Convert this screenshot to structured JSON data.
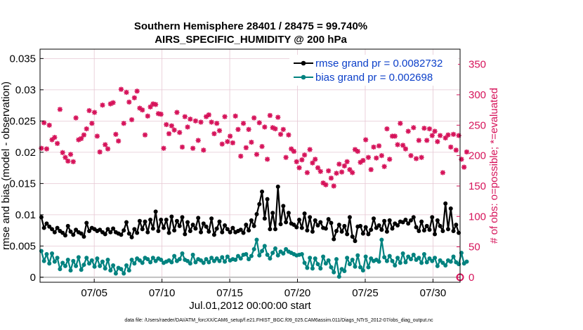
{
  "chart_data": {
    "type": "line",
    "title_line1": "Southern Hemisphere 28401 / 28475 = 99.740%",
    "title_line2": "AIRS_SPECIFIC_HUMIDITY @ 200 hPa",
    "xlabel": "Jul.01,2012 00:00:00 start",
    "ylabel_left": "rmse and bias (model - observation)",
    "ylabel_right": "# of obs: o=possible; *=evaluated",
    "footer": "data file: /Users/raeder/DAI/ATM_forcXX/CAM6_setup/f.e21.FHIST_BGC.f09_025.CAM6assim.011/Diags_NTrS_2012-07/obs_diag_output.nc",
    "x_range_days": [
      1,
      32
    ],
    "xticks": [
      {
        "day": 5,
        "label": "07/05"
      },
      {
        "day": 10,
        "label": "07/10"
      },
      {
        "day": 15,
        "label": "07/15"
      },
      {
        "day": 20,
        "label": "07/20"
      },
      {
        "day": 25,
        "label": "07/25"
      },
      {
        "day": 30,
        "label": "07/30"
      }
    ],
    "ylim_left": [
      -0.0008,
      0.0365
    ],
    "yticks_left": [
      "0",
      "0.005",
      "0.01",
      "0.015",
      "0.02",
      "0.025",
      "0.03",
      "0.035"
    ],
    "yticks_left_values": [
      0,
      0.005,
      0.01,
      0.015,
      0.02,
      0.025,
      0.03,
      0.035
    ],
    "ylim_right": [
      -8.2,
      375
    ],
    "yticks_right": [
      "0",
      "50",
      "100",
      "150",
      "200",
      "250",
      "300",
      "350"
    ],
    "yticks_right_values": [
      0,
      50,
      100,
      150,
      200,
      250,
      300,
      350
    ],
    "colors": {
      "rmse": "#000000",
      "bias": "#00827f",
      "obs": "#d6135a",
      "possible_line": "#c0c0c0",
      "grid": "#e6c7d3",
      "legend_text": "#0b3fc9"
    },
    "series": [
      {
        "name": "rmse",
        "legend": "rmse grand pr = 0.0082732",
        "values": [
          0.0096,
          0.0079,
          0.0086,
          0.0081,
          0.0077,
          0.0072,
          0.0079,
          0.0074,
          0.0071,
          0.0067,
          0.0082,
          0.0073,
          0.0068,
          0.0076,
          0.0072,
          0.007,
          0.0065,
          0.0087,
          0.0074,
          0.0079,
          0.0077,
          0.0074,
          0.0076,
          0.0072,
          0.0069,
          0.0077,
          0.0072,
          0.0078,
          0.0072,
          0.007,
          0.0068,
          0.0075,
          0.0088,
          0.007,
          0.0064,
          0.0077,
          0.0071,
          0.009,
          0.0077,
          0.0089,
          0.0072,
          0.0092,
          0.0078,
          0.0105,
          0.0074,
          0.0092,
          0.0079,
          0.0092,
          0.0071,
          0.0097,
          0.0075,
          0.009,
          0.0082,
          0.0096,
          0.0069,
          0.0088,
          0.0074,
          0.0084,
          0.0078,
          0.0095,
          0.0072,
          0.0086,
          0.0081,
          0.0073,
          0.0094,
          0.0068,
          0.0078,
          0.0089,
          0.0072,
          0.0083,
          0.0077,
          0.0072,
          0.0079,
          0.0072,
          0.0074,
          0.0076,
          0.0071,
          0.0084,
          0.0075,
          0.0091,
          0.0082,
          0.0101,
          0.0117,
          0.0137,
          0.0094,
          0.0125,
          0.0077,
          0.0103,
          0.0077,
          0.0145,
          0.0085,
          0.0114,
          0.0088,
          0.0103,
          0.0086,
          0.0084,
          0.008,
          0.0092,
          0.0079,
          0.0102,
          0.0075,
          0.0096,
          0.0073,
          0.0091,
          0.0083,
          0.0088,
          0.0079,
          0.0078,
          0.0093,
          0.0087,
          0.0061,
          0.0074,
          0.0084,
          0.0073,
          0.0082,
          0.0069,
          0.0096,
          0.0065,
          0.0058,
          0.0081,
          0.0082,
          0.007,
          0.008,
          0.0069,
          0.0076,
          0.0094,
          0.0079,
          0.0083,
          0.0076,
          0.009,
          0.0073,
          0.0091,
          0.0078,
          0.0086,
          0.0083,
          0.0089,
          0.0088,
          0.0092,
          0.0086,
          0.0091,
          0.0096,
          0.008,
          0.0074,
          0.0089,
          0.0075,
          0.0082,
          0.0076,
          0.0096,
          0.0069,
          0.0091,
          0.0082,
          0.0074,
          0.0118,
          0.0077,
          0.011,
          0.0074,
          0.0084,
          0.0071
        ]
      },
      {
        "name": "bias",
        "legend": "bias grand pr = 0.002698",
        "values": [
          0.0042,
          0.0026,
          0.0037,
          0.0022,
          0.0038,
          0.0025,
          0.0031,
          0.0013,
          0.0023,
          0.0018,
          0.0028,
          0.0011,
          0.0026,
          0.0018,
          0.0032,
          0.0012,
          0.002,
          0.0031,
          0.0022,
          0.0027,
          0.0017,
          0.003,
          0.0018,
          0.0025,
          0.0014,
          0.0028,
          0.0011,
          0.0019,
          0.0006,
          0.0015,
          0.0013,
          0.0006,
          0.0019,
          0.0011,
          0.0028,
          0.0022,
          0.003,
          0.0027,
          0.0023,
          0.0031,
          0.0029,
          0.0024,
          0.0031,
          0.0026,
          0.003,
          0.0028,
          0.0023,
          0.0025,
          0.0027,
          0.0024,
          0.0034,
          0.0026,
          0.0029,
          0.0038,
          0.0028,
          0.0026,
          0.0022,
          0.0036,
          0.0024,
          0.0029,
          0.0027,
          0.0023,
          0.0029,
          0.0024,
          0.0031,
          0.0026,
          0.003,
          0.0026,
          0.0032,
          0.0025,
          0.0033,
          0.0027,
          0.0029,
          0.0028,
          0.0034,
          0.003,
          0.0036,
          0.0037,
          0.0029,
          0.0034,
          0.0045,
          0.006,
          0.0035,
          0.0042,
          0.005,
          0.0036,
          0.003,
          0.0039,
          0.0046,
          0.0035,
          0.0041,
          0.0038,
          0.0045,
          0.0041,
          0.0039,
          0.0037,
          0.0035,
          0.0036,
          0.0037,
          0.0023,
          0.0015,
          0.0031,
          0.0014,
          0.003,
          0.0021,
          0.0014,
          0.0033,
          0.0022,
          0.0027,
          0.0016,
          0.0008,
          0.0029,
          0.0001,
          0.0013,
          0.001,
          0.0031,
          0.0021,
          0.0028,
          0.0017,
          0.0035,
          0.0016,
          0.0011,
          0.0033,
          0.0016,
          0.003,
          0.0026,
          0.0028,
          0.0025,
          0.006,
          0.0032,
          0.0026,
          0.0034,
          0.0026,
          0.0019,
          0.0031,
          0.0023,
          0.0038,
          0.0024,
          0.0033,
          0.0029,
          0.0036,
          0.0028,
          0.0031,
          0.0023,
          0.0037,
          0.0024,
          0.003,
          0.0026,
          0.0031,
          0.0018,
          0.0027,
          0.0023,
          0.0019,
          0.0027,
          0.0025,
          0.0033,
          0.0024,
          0.0021,
          0.0039,
          0.0022,
          0.0025
        ]
      },
      {
        "name": "obs_evaluated",
        "axis": "right",
        "values": [
          212,
          254,
          211,
          250,
          226,
          230,
          220,
          276,
          205,
          197,
          191,
          202,
          190,
          262,
          226,
          228,
          234,
          244,
          274,
          253,
          271,
          232,
          206,
          283,
          218,
          211,
          285,
          287,
          235,
          224,
          309,
          253,
          304,
          288,
          259,
          295,
          306,
          278,
          275,
          234,
          265,
          280,
          285,
          284,
          269,
          268,
          212,
          251,
          236,
          249,
          242,
          271,
          238,
          214,
          264,
          247,
          260,
          212,
          257,
          225,
          255,
          209,
          264,
          267,
          255,
          236,
          253,
          241,
          219,
          264,
          223,
          232,
          221,
          265,
          243,
          199,
          253,
          213,
          243,
          222,
          262,
          202,
          254,
          215,
          247,
          194,
          266,
          246,
          244,
          263,
          235,
          243,
          197,
          234,
          211,
          207,
          190,
          180,
          193,
          201,
          172,
          210,
          188,
          194,
          180,
          174,
          155,
          152,
          175,
          163,
          150,
          171,
          186,
          173,
          183,
          190,
          177,
          172,
          210,
          207,
          189,
          192,
          226,
          197,
          177,
          214,
          196,
          216,
          200,
          182,
          244,
          194,
          232,
          232,
          218,
          253,
          217,
          211,
          240,
          200,
          246,
          195,
          225,
          197,
          245,
          225,
          244,
          233,
          240,
          223,
          233,
          172,
          229,
          234,
          214,
          235,
          209,
          233,
          194,
          181,
          206
        ]
      },
      {
        "name": "obs_possible",
        "axis": "right",
        "values": [
          0
        ]
      }
    ]
  }
}
